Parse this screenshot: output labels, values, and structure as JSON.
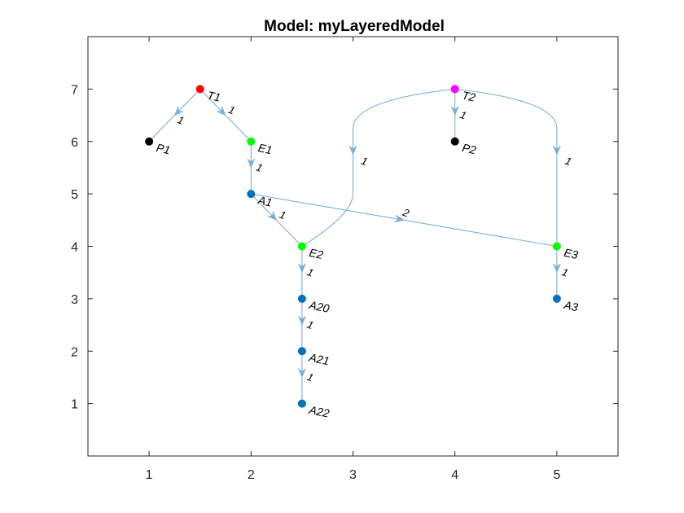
{
  "title": "Model: myLayeredModel",
  "axes": {
    "xlim": [
      0.4,
      5.6
    ],
    "ylim": [
      0,
      8
    ],
    "xticks": [
      "1",
      "2",
      "3",
      "4",
      "5"
    ],
    "yticks": [
      "1",
      "2",
      "3",
      "4",
      "5",
      "6",
      "7"
    ],
    "box": true,
    "grid": false
  },
  "colors": {
    "edge": "#7aaed6",
    "task": "#ff0000",
    "task_alt": "#ff00ff",
    "entry": "#00ff00",
    "activity": "#0072bd",
    "processor": "#000000"
  },
  "nodes": [
    {
      "id": "T1",
      "label": "T1",
      "x": 1.5,
      "y": 7,
      "color": "#ff0000"
    },
    {
      "id": "P1",
      "label": "P1",
      "x": 1,
      "y": 6,
      "color": "#000000"
    },
    {
      "id": "E1",
      "label": "E1",
      "x": 2,
      "y": 6,
      "color": "#00ff00"
    },
    {
      "id": "A1",
      "label": "A1",
      "x": 2,
      "y": 5,
      "color": "#0072bd"
    },
    {
      "id": "E2",
      "label": "E2",
      "x": 2.5,
      "y": 4,
      "color": "#00ff00"
    },
    {
      "id": "A20",
      "label": "A20",
      "x": 2.5,
      "y": 3,
      "color": "#0072bd"
    },
    {
      "id": "A21",
      "label": "A21",
      "x": 2.5,
      "y": 2,
      "color": "#0072bd"
    },
    {
      "id": "A22",
      "label": "A22",
      "x": 2.5,
      "y": 1,
      "color": "#0072bd"
    },
    {
      "id": "T2",
      "label": "T2",
      "x": 4,
      "y": 7,
      "color": "#ff00ff"
    },
    {
      "id": "P2",
      "label": "P2",
      "x": 4,
      "y": 6,
      "color": "#000000"
    },
    {
      "id": "E3",
      "label": "E3",
      "x": 5,
      "y": 4,
      "color": "#00ff00"
    },
    {
      "id": "A3",
      "label": "A3",
      "x": 5,
      "y": 3,
      "color": "#0072bd"
    }
  ],
  "edges": [
    {
      "from": "T1",
      "to": "P1",
      "label": "1"
    },
    {
      "from": "T1",
      "to": "E1",
      "label": "1"
    },
    {
      "from": "E1",
      "to": "A1",
      "label": "1"
    },
    {
      "from": "A1",
      "to": "E2",
      "label": "1"
    },
    {
      "from": "A1",
      "to": "E3",
      "label": "2"
    },
    {
      "from": "T2",
      "to": "P2",
      "label": "1"
    },
    {
      "from": "T2",
      "to": "E2",
      "label": "1",
      "route": [
        [
          4,
          7
        ],
        [
          3,
          6.4
        ],
        [
          3,
          5
        ],
        [
          2.5,
          4
        ]
      ]
    },
    {
      "from": "T2",
      "to": "E3",
      "label": "1",
      "route": [
        [
          4,
          7
        ],
        [
          5,
          6.4
        ],
        [
          5,
          5
        ],
        [
          5,
          4
        ]
      ]
    },
    {
      "from": "E2",
      "to": "A20",
      "label": "1"
    },
    {
      "from": "A20",
      "to": "A21",
      "label": "1"
    },
    {
      "from": "A21",
      "to": "A22",
      "label": "1"
    },
    {
      "from": "E3",
      "to": "A3",
      "label": "1"
    }
  ]
}
